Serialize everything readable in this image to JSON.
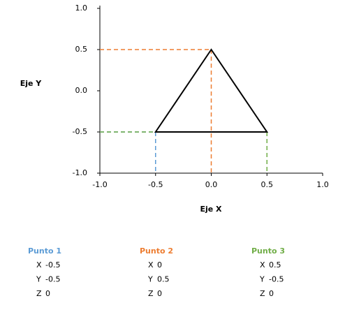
{
  "chart_data": {
    "type": "triangle",
    "xlabel": "Eje X",
    "ylabel": "Eje Y",
    "xlim": [
      -1.0,
      1.0
    ],
    "ylim": [
      -1.0,
      1.0
    ],
    "xticks": [
      {
        "value": -1.0,
        "label": "-1.0"
      },
      -0.5,
      {
        "value": 0,
        "label": "0.0"
      },
      0.5,
      {
        "value": 1.0,
        "label": "1.0"
      }
    ],
    "yticks": [
      {
        "value": -1.0,
        "label": "-1.0"
      },
      -0.5,
      {
        "value": 0,
        "label": "0.0"
      },
      0.5,
      {
        "value": 1.0,
        "label": "1.0"
      }
    ],
    "shape_color": "#000000",
    "coordinate_labels": [
      "X",
      "Y",
      "Z"
    ],
    "series": [
      {
        "name": "Punto 1",
        "color": "#5b9bd5",
        "x": -0.5,
        "y": -0.5,
        "z": 0
      },
      {
        "name": "Punto 2",
        "color": "#ed7d31",
        "x": 0,
        "y": 0.5,
        "z": 0
      },
      {
        "name": "Punto 3",
        "color": "#70ad47",
        "x": 0.5,
        "y": -0.5,
        "z": 0
      }
    ]
  }
}
